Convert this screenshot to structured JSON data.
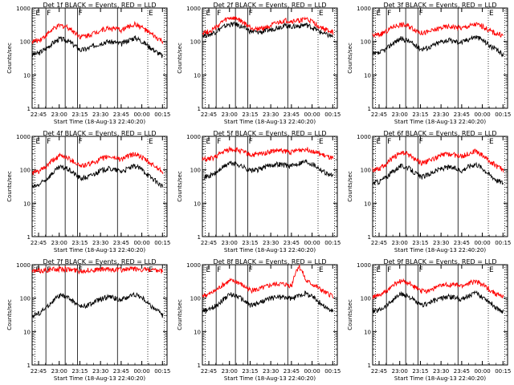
{
  "colors": {
    "black_series": "#000000",
    "red_series": "#ff0000",
    "axis": "#000000",
    "background": "#ffffff"
  },
  "shared": {
    "ylabel": "Counts/sec",
    "xlabel": "Start Time (18-Aug-13 22:40:20)",
    "xticks": [
      "22:45",
      "23:00",
      "23:15",
      "23:30",
      "23:45",
      "00:00",
      "00:15"
    ],
    "yticks": [
      "1",
      "10",
      "100",
      "1000"
    ],
    "markers": [
      "E",
      "F",
      "F",
      "E"
    ]
  },
  "chart_data": [
    {
      "type": "line",
      "title": "Det 1f BLACK = Events, RED = LLD",
      "xlabel": "Start Time (18-Aug-13 22:40:20)",
      "ylabel": "Counts/sec",
      "yscale": "log",
      "ylim": [
        1,
        1000
      ],
      "xlim_minutes": [
        0,
        98
      ],
      "x_minutes": [
        0,
        5,
        10,
        15,
        20,
        25,
        30,
        35,
        40,
        45,
        50,
        55,
        60,
        65,
        70,
        75,
        80,
        85,
        90,
        95
      ],
      "series": [
        {
          "name": "Events",
          "color": "black",
          "values": [
            40,
            45,
            60,
            90,
            120,
            110,
            80,
            55,
            60,
            75,
            90,
            100,
            95,
            85,
            110,
            130,
            100,
            70,
            50,
            35
          ]
        },
        {
          "name": "LLD",
          "color": "red",
          "values": [
            100,
            110,
            150,
            230,
            300,
            280,
            200,
            140,
            150,
            180,
            220,
            250,
            240,
            220,
            280,
            330,
            260,
            180,
            130,
            100
          ]
        }
      ]
    },
    {
      "type": "line",
      "title": "Det 2f BLACK = Events, RED = LLD",
      "xlabel": "Start Time (18-Aug-13 22:40:20)",
      "ylabel": "Counts/sec",
      "yscale": "log",
      "ylim": [
        1,
        1000
      ],
      "xlim_minutes": [
        0,
        98
      ],
      "x_minutes": [
        0,
        5,
        10,
        15,
        20,
        25,
        30,
        35,
        40,
        45,
        50,
        55,
        60,
        65,
        70,
        75,
        80,
        85,
        90,
        95
      ],
      "series": [
        {
          "name": "Events",
          "color": "black",
          "values": [
            150,
            160,
            200,
            270,
            330,
            320,
            260,
            200,
            190,
            200,
            230,
            270,
            300,
            280,
            290,
            320,
            260,
            200,
            160,
            140
          ]
        },
        {
          "name": "LLD",
          "color": "red",
          "values": [
            190,
            200,
            260,
            400,
            500,
            480,
            360,
            260,
            240,
            260,
            300,
            360,
            420,
            400,
            420,
            480,
            380,
            280,
            220,
            190
          ]
        }
      ]
    },
    {
      "type": "line",
      "title": "Det 3f BLACK = Events, RED = LLD",
      "xlabel": "Start Time (18-Aug-13 22:40:20)",
      "ylabel": "Counts/sec",
      "yscale": "log",
      "ylim": [
        1,
        1000
      ],
      "xlim_minutes": [
        0,
        98
      ],
      "x_minutes": [
        0,
        5,
        10,
        15,
        20,
        25,
        30,
        35,
        40,
        45,
        50,
        55,
        60,
        65,
        70,
        75,
        80,
        85,
        90,
        95
      ],
      "series": [
        {
          "name": "Events",
          "color": "black",
          "values": [
            40,
            45,
            60,
            90,
            120,
            110,
            80,
            60,
            65,
            80,
            100,
            110,
            100,
            95,
            120,
            140,
            110,
            75,
            55,
            40
          ]
        },
        {
          "name": "LLD",
          "color": "red",
          "values": [
            150,
            160,
            200,
            280,
            320,
            300,
            240,
            180,
            190,
            220,
            260,
            280,
            270,
            250,
            290,
            330,
            280,
            210,
            170,
            150
          ]
        }
      ]
    },
    {
      "type": "line",
      "title": "Det 4f BLACK = Events, RED = LLD",
      "xlabel": "Start Time (18-Aug-13 22:40:20)",
      "ylabel": "Counts/sec",
      "yscale": "log",
      "ylim": [
        1,
        1000
      ],
      "xlim_minutes": [
        0,
        98
      ],
      "x_minutes": [
        0,
        5,
        10,
        15,
        20,
        25,
        30,
        35,
        40,
        45,
        50,
        55,
        60,
        65,
        70,
        75,
        80,
        85,
        90,
        95
      ],
      "series": [
        {
          "name": "Events",
          "color": "black",
          "values": [
            30,
            35,
            50,
            80,
            120,
            110,
            80,
            55,
            60,
            75,
            95,
            110,
            100,
            90,
            110,
            130,
            100,
            65,
            45,
            30
          ]
        },
        {
          "name": "LLD",
          "color": "red",
          "values": [
            80,
            90,
            120,
            190,
            260,
            240,
            180,
            130,
            140,
            170,
            210,
            250,
            230,
            210,
            260,
            300,
            230,
            160,
            120,
            90
          ]
        }
      ]
    },
    {
      "type": "line",
      "title": "Det 5f BLACK = Events, RED = LLD",
      "xlabel": "Start Time (18-Aug-13 22:40:20)",
      "ylabel": "Counts/sec",
      "yscale": "log",
      "ylim": [
        1,
        1000
      ],
      "xlim_minutes": [
        0,
        98
      ],
      "x_minutes": [
        0,
        5,
        10,
        15,
        20,
        25,
        30,
        35,
        40,
        45,
        50,
        55,
        60,
        65,
        70,
        75,
        80,
        85,
        90,
        95
      ],
      "series": [
        {
          "name": "Events",
          "color": "black",
          "values": [
            60,
            65,
            80,
            120,
            160,
            150,
            120,
            95,
            100,
            120,
            140,
            150,
            140,
            130,
            160,
            180,
            150,
            110,
            80,
            65
          ]
        },
        {
          "name": "LLD",
          "color": "red",
          "values": [
            200,
            210,
            250,
            340,
            420,
            400,
            340,
            280,
            290,
            320,
            360,
            380,
            360,
            340,
            390,
            420,
            370,
            300,
            250,
            210
          ]
        }
      ]
    },
    {
      "type": "line",
      "title": "Det 6f BLACK = Events, RED = LLD",
      "xlabel": "Start Time (18-Aug-13 22:40:20)",
      "ylabel": "Counts/sec",
      "yscale": "log",
      "ylim": [
        1,
        1000
      ],
      "xlim_minutes": [
        0,
        98
      ],
      "x_minutes": [
        0,
        5,
        10,
        15,
        20,
        25,
        30,
        35,
        40,
        45,
        50,
        55,
        60,
        65,
        70,
        75,
        80,
        85,
        90,
        95
      ],
      "series": [
        {
          "name": "Events",
          "color": "black",
          "values": [
            40,
            45,
            60,
            90,
            130,
            120,
            85,
            60,
            70,
            90,
            110,
            120,
            110,
            95,
            130,
            150,
            110,
            70,
            50,
            40
          ]
        },
        {
          "name": "LLD",
          "color": "red",
          "values": [
            100,
            110,
            150,
            230,
            320,
            300,
            220,
            160,
            180,
            220,
            270,
            300,
            280,
            250,
            320,
            360,
            270,
            180,
            130,
            100
          ]
        }
      ]
    },
    {
      "type": "line",
      "title": "Det 7f BLACK = Events, RED = LLD",
      "xlabel": "Start Time (18-Aug-13 22:40:20)",
      "ylabel": "Counts/sec",
      "yscale": "log",
      "ylim": [
        1,
        1000
      ],
      "xlim_minutes": [
        0,
        98
      ],
      "x_minutes": [
        0,
        5,
        10,
        15,
        20,
        25,
        30,
        35,
        40,
        45,
        50,
        55,
        60,
        65,
        70,
        75,
        80,
        85,
        90,
        95
      ],
      "series": [
        {
          "name": "Events",
          "color": "black",
          "values": [
            30,
            35,
            50,
            80,
            120,
            110,
            80,
            55,
            60,
            75,
            95,
            110,
            100,
            90,
            110,
            130,
            100,
            65,
            45,
            30
          ]
        },
        {
          "name": "LLD",
          "color": "red",
          "values": [
            650,
            650,
            700,
            720,
            750,
            740,
            700,
            650,
            680,
            700,
            720,
            730,
            720,
            710,
            740,
            760,
            720,
            680,
            650,
            640
          ]
        }
      ]
    },
    {
      "type": "line",
      "title": "Det 8f BLACK = Events, RED = LLD",
      "xlabel": "Start Time (18-Aug-13 22:40:20)",
      "ylabel": "Counts/sec",
      "yscale": "log",
      "ylim": [
        1,
        1000
      ],
      "xlim_minutes": [
        0,
        98
      ],
      "x_minutes": [
        0,
        5,
        10,
        15,
        20,
        25,
        30,
        35,
        40,
        45,
        50,
        55,
        60,
        65,
        70,
        75,
        80,
        85,
        90,
        95
      ],
      "series": [
        {
          "name": "Events",
          "color": "black",
          "values": [
            40,
            45,
            60,
            90,
            130,
            120,
            85,
            60,
            70,
            85,
            100,
            110,
            105,
            95,
            120,
            140,
            110,
            75,
            50,
            40
          ]
        },
        {
          "name": "LLD",
          "color": "red",
          "values": [
            120,
            130,
            170,
            250,
            330,
            310,
            230,
            170,
            180,
            210,
            250,
            270,
            260,
            240,
            900,
            330,
            260,
            190,
            140,
            120
          ]
        }
      ]
    },
    {
      "type": "line",
      "title": "Det 9f BLACK = Events, RED = LLD",
      "xlabel": "Start Time (18-Aug-13 22:40:20)",
      "ylabel": "Counts/sec",
      "yscale": "log",
      "ylim": [
        1,
        1000
      ],
      "xlim_minutes": [
        0,
        98
      ],
      "x_minutes": [
        0,
        5,
        10,
        15,
        20,
        25,
        30,
        35,
        40,
        45,
        50,
        55,
        60,
        65,
        70,
        75,
        80,
        85,
        90,
        95
      ],
      "series": [
        {
          "name": "Events",
          "color": "black",
          "values": [
            40,
            45,
            60,
            90,
            130,
            120,
            85,
            60,
            70,
            85,
            100,
            110,
            105,
            95,
            120,
            140,
            110,
            75,
            50,
            40
          ]
        },
        {
          "name": "LLD",
          "color": "red",
          "values": [
            110,
            120,
            160,
            240,
            320,
            300,
            220,
            160,
            170,
            200,
            240,
            260,
            250,
            230,
            280,
            320,
            250,
            180,
            130,
            110
          ]
        }
      ]
    }
  ]
}
